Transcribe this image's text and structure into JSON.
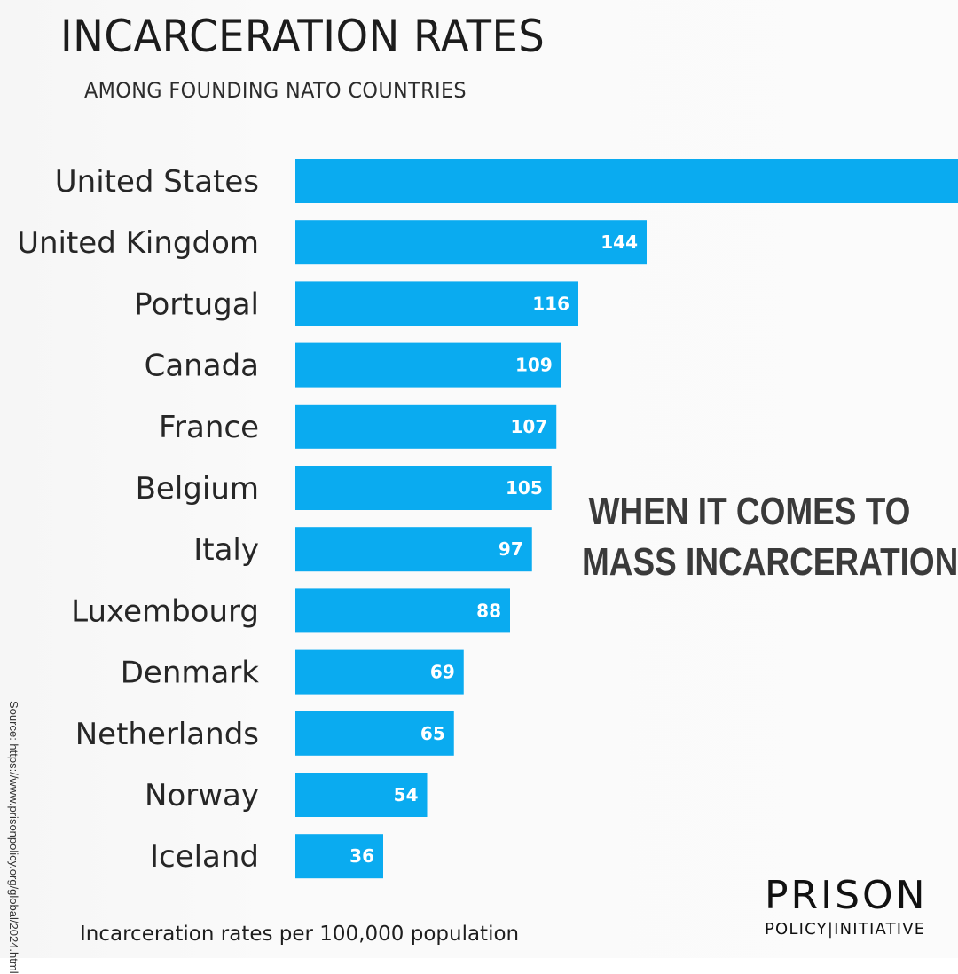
{
  "chart_data": {
    "type": "bar",
    "orientation": "horizontal",
    "title": "INCARCERATION RATES",
    "subtitle": "AMONG FOUNDING NATO COUNTRIES",
    "xlabel": "Incarceration rates per 100,000 population",
    "categories": [
      "United States",
      "United Kingdom",
      "Portugal",
      "Canada",
      "France",
      "Belgium",
      "Italy",
      "Luxembourg",
      "Denmark",
      "Netherlands",
      "Norway",
      "Iceland"
    ],
    "values": [
      null,
      144,
      116,
      109,
      107,
      105,
      97,
      88,
      69,
      65,
      54,
      36
    ],
    "value_labels": [
      "",
      "144",
      "116",
      "109",
      "107",
      "105",
      "97",
      "88",
      "69",
      "65",
      "54",
      "36"
    ],
    "bar_color": "#0aabf0",
    "grid": false,
    "legend": "none"
  },
  "overlay": {
    "headline_line1": "WHEN IT COMES TO",
    "headline_line2": "MASS INCARCERATION...",
    "source": "Source: https://www.prisonpolicy.org/global/2024.html"
  },
  "logo": {
    "word1": "PRISON",
    "word2": "POLICY",
    "word3": "INITIATIVE"
  },
  "colors": {
    "text": "#262626",
    "headline": "#3a3a3a",
    "bar": "#0aabf0"
  }
}
